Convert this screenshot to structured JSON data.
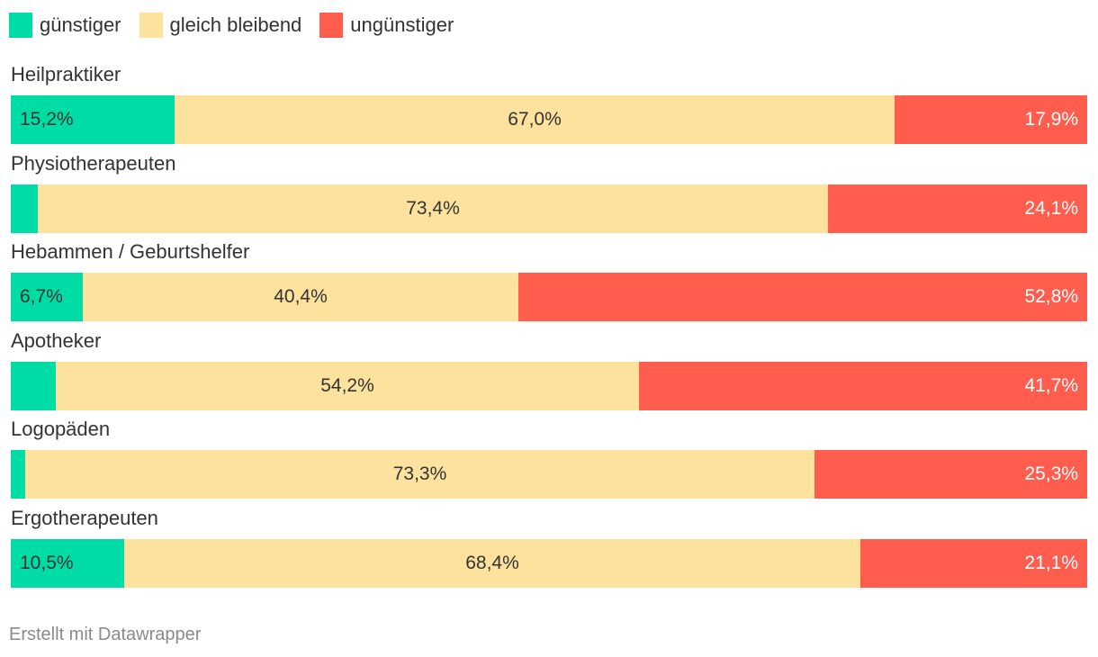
{
  "chart_data": {
    "type": "bar",
    "orientation": "horizontal",
    "stacked": true,
    "categories": [
      "Heilpraktiker",
      "Physiotherapeuten",
      "Hebammen / Geburtshelfer",
      "Apotheker",
      "Logopäden",
      "Ergotherapeuten"
    ],
    "series": [
      {
        "name": "günstiger",
        "color": "#00dca6",
        "values": [
          15.2,
          2.5,
          6.7,
          4.2,
          1.3,
          10.5
        ],
        "labels": [
          "15,2%",
          "",
          "6,7%",
          "",
          "",
          "10,5%"
        ]
      },
      {
        "name": "gleich bleibend",
        "color": "#fde29e",
        "values": [
          67.0,
          73.4,
          40.4,
          54.2,
          73.3,
          68.4
        ],
        "labels": [
          "67,0%",
          "73,4%",
          "40,4%",
          "54,2%",
          "73,3%",
          "68,4%"
        ]
      },
      {
        "name": "ungünstiger",
        "color": "#ff5e4e",
        "values": [
          17.9,
          24.1,
          52.8,
          41.7,
          25.3,
          21.1
        ],
        "labels": [
          "17,9%",
          "24,1%",
          "52,8%",
          "41,7%",
          "25,3%",
          "21,1%"
        ]
      }
    ],
    "xlim": [
      0,
      100
    ],
    "grid": false,
    "legend_position": "top-left"
  },
  "footer": {
    "credit": "Erstellt mit Datawrapper"
  }
}
